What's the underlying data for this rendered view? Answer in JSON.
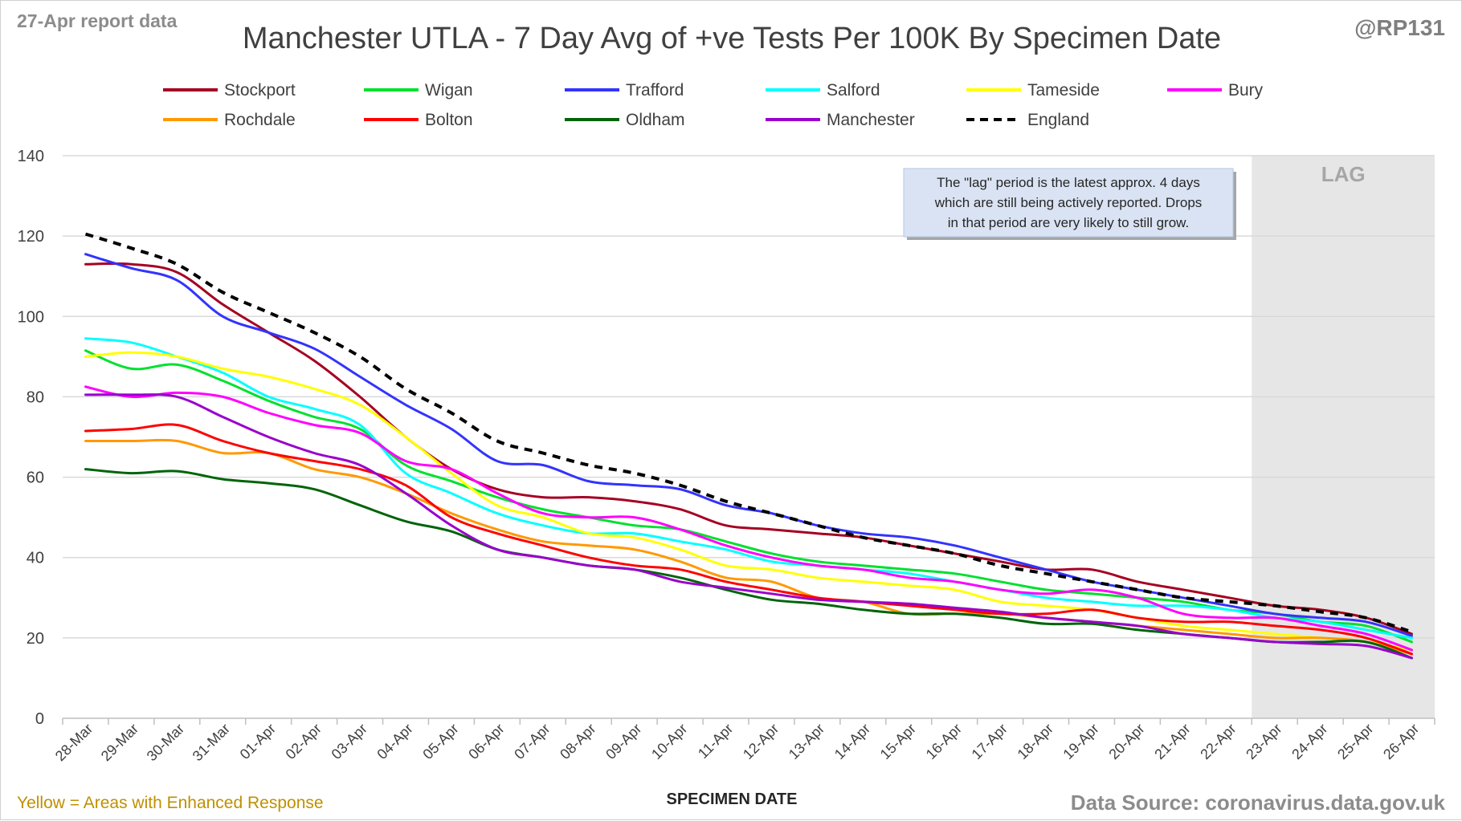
{
  "header": {
    "report_label": "27-Apr report data",
    "author": "@RP131"
  },
  "footer": {
    "note": "Yellow = Areas with Enhanced Response",
    "source": "Data Source: coronavirus.data.gov.uk"
  },
  "chart_data": {
    "type": "line",
    "title": "Manchester UTLA - 7 Day Avg of +ve Tests Per 100K By Specimen Date",
    "xlabel": "SPECIMEN DATE",
    "ylabel": "",
    "ylim": [
      0,
      140
    ],
    "yticks": [
      0,
      20,
      40,
      60,
      80,
      100,
      120,
      140
    ],
    "grid": true,
    "legend_position": "top",
    "lag_label": "LAG",
    "lag_start": "23-Apr",
    "lag_end": "26-Apr",
    "annotation": "The \"lag\" period is the latest approx. 4 days which are still being actively reported. Drops in that period are very likely to still grow.",
    "annotation_lines": [
      "The \"lag\" period is the latest approx. 4 days",
      "which are still being actively reported.  Drops",
      "in that period are very likely to still grow."
    ],
    "x": [
      "28-Mar",
      "29-Mar",
      "30-Mar",
      "31-Mar",
      "01-Apr",
      "02-Apr",
      "03-Apr",
      "04-Apr",
      "05-Apr",
      "06-Apr",
      "07-Apr",
      "08-Apr",
      "09-Apr",
      "10-Apr",
      "11-Apr",
      "12-Apr",
      "13-Apr",
      "14-Apr",
      "15-Apr",
      "16-Apr",
      "17-Apr",
      "18-Apr",
      "19-Apr",
      "20-Apr",
      "21-Apr",
      "22-Apr",
      "23-Apr",
      "24-Apr",
      "25-Apr",
      "26-Apr"
    ],
    "series": [
      {
        "name": "Stockport",
        "color": "#a50021",
        "dash": false,
        "values": [
          113,
          113,
          111,
          103,
          96,
          89,
          80,
          70,
          62,
          57,
          55,
          55,
          54,
          52,
          48,
          47,
          46,
          45,
          43,
          41,
          39,
          37,
          37,
          34,
          32,
          30,
          28,
          27,
          25,
          21
        ]
      },
      {
        "name": "Wigan",
        "color": "#00e02e",
        "dash": false,
        "values": [
          91.5,
          87,
          88,
          84,
          79,
          75,
          72,
          63,
          59,
          55,
          52,
          50,
          48,
          47,
          44,
          41,
          39,
          38,
          37,
          36,
          34,
          32,
          31,
          30,
          29,
          27,
          26,
          24,
          23,
          19
        ]
      },
      {
        "name": "Trafford",
        "color": "#3333ff",
        "dash": false,
        "values": [
          115.5,
          112,
          109,
          100,
          96,
          92,
          85,
          78,
          72,
          64,
          63,
          59,
          58,
          57,
          53,
          51,
          48,
          46,
          45,
          43,
          40,
          37,
          34,
          32,
          30,
          28,
          26,
          25,
          24,
          20.5
        ]
      },
      {
        "name": "Salford",
        "color": "#00ffff",
        "dash": false,
        "values": [
          94.5,
          93.5,
          90,
          86,
          80,
          77,
          73,
          61,
          56,
          51,
          48,
          46,
          46,
          44,
          42,
          39,
          38,
          37,
          36,
          34,
          32,
          30,
          29,
          28,
          28,
          27,
          25,
          24,
          22,
          20
        ]
      },
      {
        "name": "Tameside",
        "color": "#ffff00",
        "dash": false,
        "values": [
          90,
          91,
          90,
          87,
          85,
          82,
          78,
          70,
          61,
          53,
          50,
          46,
          45,
          42,
          38,
          37,
          35,
          34,
          33,
          32,
          29,
          28,
          27,
          25,
          23,
          22,
          21,
          20,
          19,
          17
        ]
      },
      {
        "name": "Bury",
        "color": "#ff00ff",
        "dash": false,
        "values": [
          82.5,
          80,
          81,
          80,
          76,
          73,
          71,
          64,
          62,
          56,
          51,
          50,
          50,
          47,
          43,
          40,
          38,
          37,
          35,
          34,
          32,
          31,
          32,
          30,
          26,
          25,
          25,
          23,
          21,
          17
        ]
      },
      {
        "name": "Rochdale",
        "color": "#ff9900",
        "dash": false,
        "values": [
          69,
          69,
          69,
          66,
          66,
          62,
          60,
          56,
          51,
          47,
          44,
          43,
          42,
          39,
          35,
          34,
          30,
          29,
          26,
          26,
          26,
          25,
          24,
          23,
          22,
          21,
          20,
          20,
          19,
          16
        ]
      },
      {
        "name": "Bolton",
        "color": "#ff0000",
        "dash": false,
        "values": [
          71.5,
          72,
          73,
          69,
          66,
          64,
          62,
          58,
          50,
          46,
          43,
          40,
          38,
          37,
          34,
          32,
          30,
          29,
          28,
          27,
          26,
          26,
          27,
          25,
          24,
          24,
          23,
          22,
          20,
          16
        ]
      },
      {
        "name": "Oldham",
        "color": "#00640a",
        "dash": false,
        "values": [
          62,
          61,
          61.5,
          59.5,
          58.5,
          57,
          53,
          49,
          46.5,
          42,
          40,
          38,
          37,
          35,
          32,
          29.5,
          28.5,
          27,
          26,
          26,
          25,
          23.5,
          23.5,
          22,
          21,
          20,
          19,
          19,
          19,
          15
        ]
      },
      {
        "name": "Manchester",
        "color": "#9900cc",
        "dash": false,
        "values": [
          80.5,
          80.5,
          80,
          75,
          70,
          66,
          63,
          56,
          48,
          42,
          40,
          38,
          37,
          34,
          32.5,
          31,
          29.5,
          29,
          28.5,
          27.5,
          26.5,
          25,
          24,
          23,
          21,
          20,
          19,
          18.5,
          18,
          15
        ]
      },
      {
        "name": "England",
        "color": "#000000",
        "dash": true,
        "values": [
          120.5,
          117,
          113,
          106,
          101,
          96,
          90,
          82,
          76,
          69,
          66,
          63,
          61,
          58,
          54,
          51,
          48,
          45,
          43,
          41,
          38,
          36,
          34,
          32,
          30,
          29,
          28,
          26.5,
          25,
          21.5
        ]
      }
    ]
  }
}
